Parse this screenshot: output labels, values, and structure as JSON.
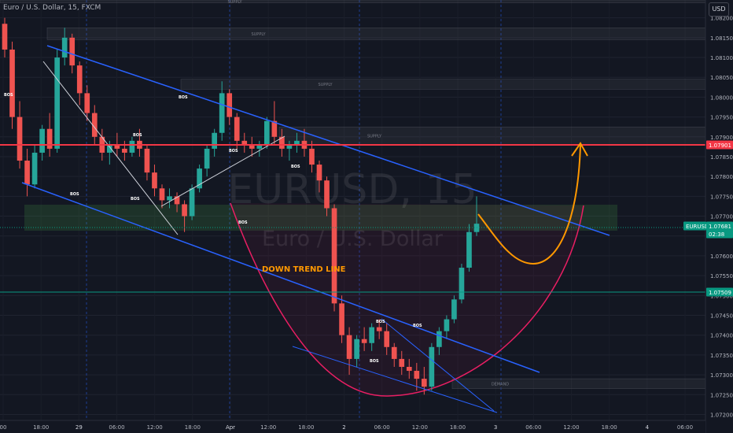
{
  "header": {
    "symbol_info": "Euro / U.S. Dollar, 15, FXCM",
    "currency_button": "USD"
  },
  "watermark": {
    "symbol": "EURUSD, 15",
    "name": "Euro / U.S. Dollar"
  },
  "colors": {
    "background": "#131722",
    "up": "#26a69a",
    "down": "#ef5350",
    "channel": "#2962ff",
    "resistance": "#f23645",
    "projection": "#ff9800",
    "cup": "#e91e63"
  },
  "chart_data": {
    "type": "candlestick",
    "y_ticks": [
      "1.08200",
      "1.08150",
      "1.08100",
      "1.08050",
      "1.08000",
      "1.07950",
      "1.07900",
      "1.07850",
      "1.07800",
      "1.07750",
      "1.07700",
      "1.07650",
      "1.07600",
      "1.07550",
      "1.07500",
      "1.07450",
      "1.07400",
      "1.07350",
      "1.07300",
      "1.07250",
      "1.07200"
    ],
    "y_range": [
      1.07185,
      1.08245
    ],
    "x_ticks": [
      "00",
      "18:00",
      "29",
      "06:00",
      "12:00",
      "18:00",
      "Apr",
      "12:00",
      "18:00",
      "2",
      "06:00",
      "12:00",
      "18:00",
      "3",
      "06:00",
      "12:00",
      "18:00",
      "4",
      "06:00"
    ],
    "price_labels": [
      {
        "text": "1.07901",
        "value": 1.07901,
        "color": "#f23645"
      },
      {
        "text": "EURUSD",
        "value": 1.07681,
        "color": "#089981"
      },
      {
        "text": "1.07681",
        "value": 1.07681,
        "color": "#089981"
      },
      {
        "text": "02:38",
        "value": 1.07658,
        "color": "#089981"
      },
      {
        "text": "1.07509",
        "value": 1.07509,
        "color": "#089981"
      }
    ],
    "zones": [
      {
        "label": "SUPPLY",
        "top": 1.08245,
        "bottom": 1.08238
      },
      {
        "label": "SUPPLY",
        "top": 1.08175,
        "bottom": 1.08145
      },
      {
        "label": "SUPPLY",
        "top": 1.08045,
        "bottom": 1.0802
      },
      {
        "label": "SUPPLY",
        "top": 1.07925,
        "bottom": 1.0788
      },
      {
        "label": "DEMAND",
        "top": 1.0729,
        "bottom": 1.07265
      }
    ],
    "annotations": [
      "BOS",
      "BOS",
      "BOS",
      "BOS",
      "BOS",
      "BOS",
      "BOS",
      "BOS",
      "BOS",
      "BOS",
      "BOS"
    ],
    "trend_label": "DOWN TREND LINE",
    "candles": [
      {
        "o": 1.08185,
        "h": 1.082,
        "c": 1.0812,
        "l": 1.081
      },
      {
        "o": 1.0812,
        "h": 1.0814,
        "c": 1.0795,
        "l": 1.0792
      },
      {
        "o": 1.0795,
        "h": 1.0799,
        "c": 1.0784,
        "l": 1.0782
      },
      {
        "o": 1.0784,
        "h": 1.0787,
        "c": 1.0778,
        "l": 1.0775
      },
      {
        "o": 1.0778,
        "h": 1.0788,
        "c": 1.0786,
        "l": 1.0777
      },
      {
        "o": 1.0786,
        "h": 1.0793,
        "c": 1.0792,
        "l": 1.0784
      },
      {
        "o": 1.0792,
        "h": 1.0796,
        "c": 1.0787,
        "l": 1.0785
      },
      {
        "o": 1.0787,
        "h": 1.0812,
        "c": 1.081,
        "l": 1.0786
      },
      {
        "o": 1.081,
        "h": 1.08175,
        "c": 1.0815,
        "l": 1.0808
      },
      {
        "o": 1.0815,
        "h": 1.0816,
        "c": 1.0808,
        "l": 1.0806
      },
      {
        "o": 1.0808,
        "h": 1.0809,
        "c": 1.0801,
        "l": 1.0798
      },
      {
        "o": 1.0801,
        "h": 1.0803,
        "c": 1.0796,
        "l": 1.0794
      },
      {
        "o": 1.0796,
        "h": 1.0798,
        "c": 1.079,
        "l": 1.0788
      },
      {
        "o": 1.079,
        "h": 1.0792,
        "c": 1.0786,
        "l": 1.0784
      },
      {
        "o": 1.0786,
        "h": 1.0789,
        "c": 1.0788,
        "l": 1.0783
      },
      {
        "o": 1.0788,
        "h": 1.0791,
        "c": 1.0787,
        "l": 1.0785
      },
      {
        "o": 1.0787,
        "h": 1.0789,
        "c": 1.0786,
        "l": 1.0784
      },
      {
        "o": 1.0786,
        "h": 1.079,
        "c": 1.0789,
        "l": 1.0785
      },
      {
        "o": 1.0789,
        "h": 1.0792,
        "c": 1.0787,
        "l": 1.0785
      },
      {
        "o": 1.0787,
        "h": 1.0788,
        "c": 1.0781,
        "l": 1.0779
      },
      {
        "o": 1.0781,
        "h": 1.0783,
        "c": 1.0777,
        "l": 1.0775
      },
      {
        "o": 1.0777,
        "h": 1.0778,
        "c": 1.0774,
        "l": 1.0772
      },
      {
        "o": 1.0774,
        "h": 1.0777,
        "c": 1.0775,
        "l": 1.0772
      },
      {
        "o": 1.0775,
        "h": 1.0776,
        "c": 1.0773,
        "l": 1.0771
      },
      {
        "o": 1.0773,
        "h": 1.0774,
        "c": 1.077,
        "l": 1.0766
      },
      {
        "o": 1.077,
        "h": 1.0778,
        "c": 1.0777,
        "l": 1.0769
      },
      {
        "o": 1.0777,
        "h": 1.0783,
        "c": 1.0782,
        "l": 1.0776
      },
      {
        "o": 1.0782,
        "h": 1.0788,
        "c": 1.0787,
        "l": 1.078
      },
      {
        "o": 1.0787,
        "h": 1.0792,
        "c": 1.0791,
        "l": 1.0785
      },
      {
        "o": 1.0791,
        "h": 1.0804,
        "c": 1.0801,
        "l": 1.0789
      },
      {
        "o": 1.0801,
        "h": 1.0802,
        "c": 1.0795,
        "l": 1.0793
      },
      {
        "o": 1.0795,
        "h": 1.0796,
        "c": 1.0789,
        "l": 1.0787
      },
      {
        "o": 1.0789,
        "h": 1.0791,
        "c": 1.0788,
        "l": 1.0786
      },
      {
        "o": 1.0788,
        "h": 1.079,
        "c": 1.0787,
        "l": 1.0785
      },
      {
        "o": 1.0787,
        "h": 1.0789,
        "c": 1.0788,
        "l": 1.0785
      },
      {
        "o": 1.0788,
        "h": 1.0795,
        "c": 1.0794,
        "l": 1.0787
      },
      {
        "o": 1.0794,
        "h": 1.0799,
        "c": 1.079,
        "l": 1.0788
      },
      {
        "o": 1.079,
        "h": 1.0792,
        "c": 1.0787,
        "l": 1.0785
      },
      {
        "o": 1.0787,
        "h": 1.0789,
        "c": 1.0788,
        "l": 1.0784
      },
      {
        "o": 1.0788,
        "h": 1.0791,
        "c": 1.0789,
        "l": 1.0786
      },
      {
        "o": 1.0789,
        "h": 1.0792,
        "c": 1.0787,
        "l": 1.0785
      },
      {
        "o": 1.0787,
        "h": 1.0789,
        "c": 1.0783,
        "l": 1.0781
      },
      {
        "o": 1.0783,
        "h": 1.0784,
        "c": 1.0779,
        "l": 1.0776
      },
      {
        "o": 1.0779,
        "h": 1.078,
        "c": 1.0772,
        "l": 1.077
      },
      {
        "o": 1.0772,
        "h": 1.0773,
        "c": 1.0748,
        "l": 1.0746
      },
      {
        "o": 1.0748,
        "h": 1.075,
        "c": 1.074,
        "l": 1.0738
      },
      {
        "o": 1.074,
        "h": 1.0742,
        "c": 1.0734,
        "l": 1.073
      },
      {
        "o": 1.0734,
        "h": 1.074,
        "c": 1.0739,
        "l": 1.0732
      },
      {
        "o": 1.0739,
        "h": 1.0742,
        "c": 1.0738,
        "l": 1.0736
      },
      {
        "o": 1.0738,
        "h": 1.0743,
        "c": 1.0742,
        "l": 1.0736
      },
      {
        "o": 1.0742,
        "h": 1.0744,
        "c": 1.0741,
        "l": 1.0739
      },
      {
        "o": 1.0741,
        "h": 1.0743,
        "c": 1.0737,
        "l": 1.0735
      },
      {
        "o": 1.0737,
        "h": 1.0738,
        "c": 1.0734,
        "l": 1.0732
      },
      {
        "o": 1.0734,
        "h": 1.0736,
        "c": 1.0732,
        "l": 1.073
      },
      {
        "o": 1.0732,
        "h": 1.0734,
        "c": 1.0731,
        "l": 1.0729
      },
      {
        "o": 1.0731,
        "h": 1.0733,
        "c": 1.0729,
        "l": 1.0726
      },
      {
        "o": 1.0729,
        "h": 1.0732,
        "c": 1.0727,
        "l": 1.0725
      },
      {
        "o": 1.0727,
        "h": 1.0738,
        "c": 1.0737,
        "l": 1.0726
      },
      {
        "o": 1.0737,
        "h": 1.0742,
        "c": 1.0741,
        "l": 1.0735
      },
      {
        "o": 1.0741,
        "h": 1.0745,
        "c": 1.0744,
        "l": 1.0739
      },
      {
        "o": 1.0744,
        "h": 1.075,
        "c": 1.0749,
        "l": 1.0743
      },
      {
        "o": 1.0749,
        "h": 1.0758,
        "c": 1.0757,
        "l": 1.0748
      },
      {
        "o": 1.0757,
        "h": 1.0768,
        "c": 1.0766,
        "l": 1.0756
      },
      {
        "o": 1.0766,
        "h": 1.0775,
        "c": 1.07681,
        "l": 1.0765
      }
    ]
  }
}
